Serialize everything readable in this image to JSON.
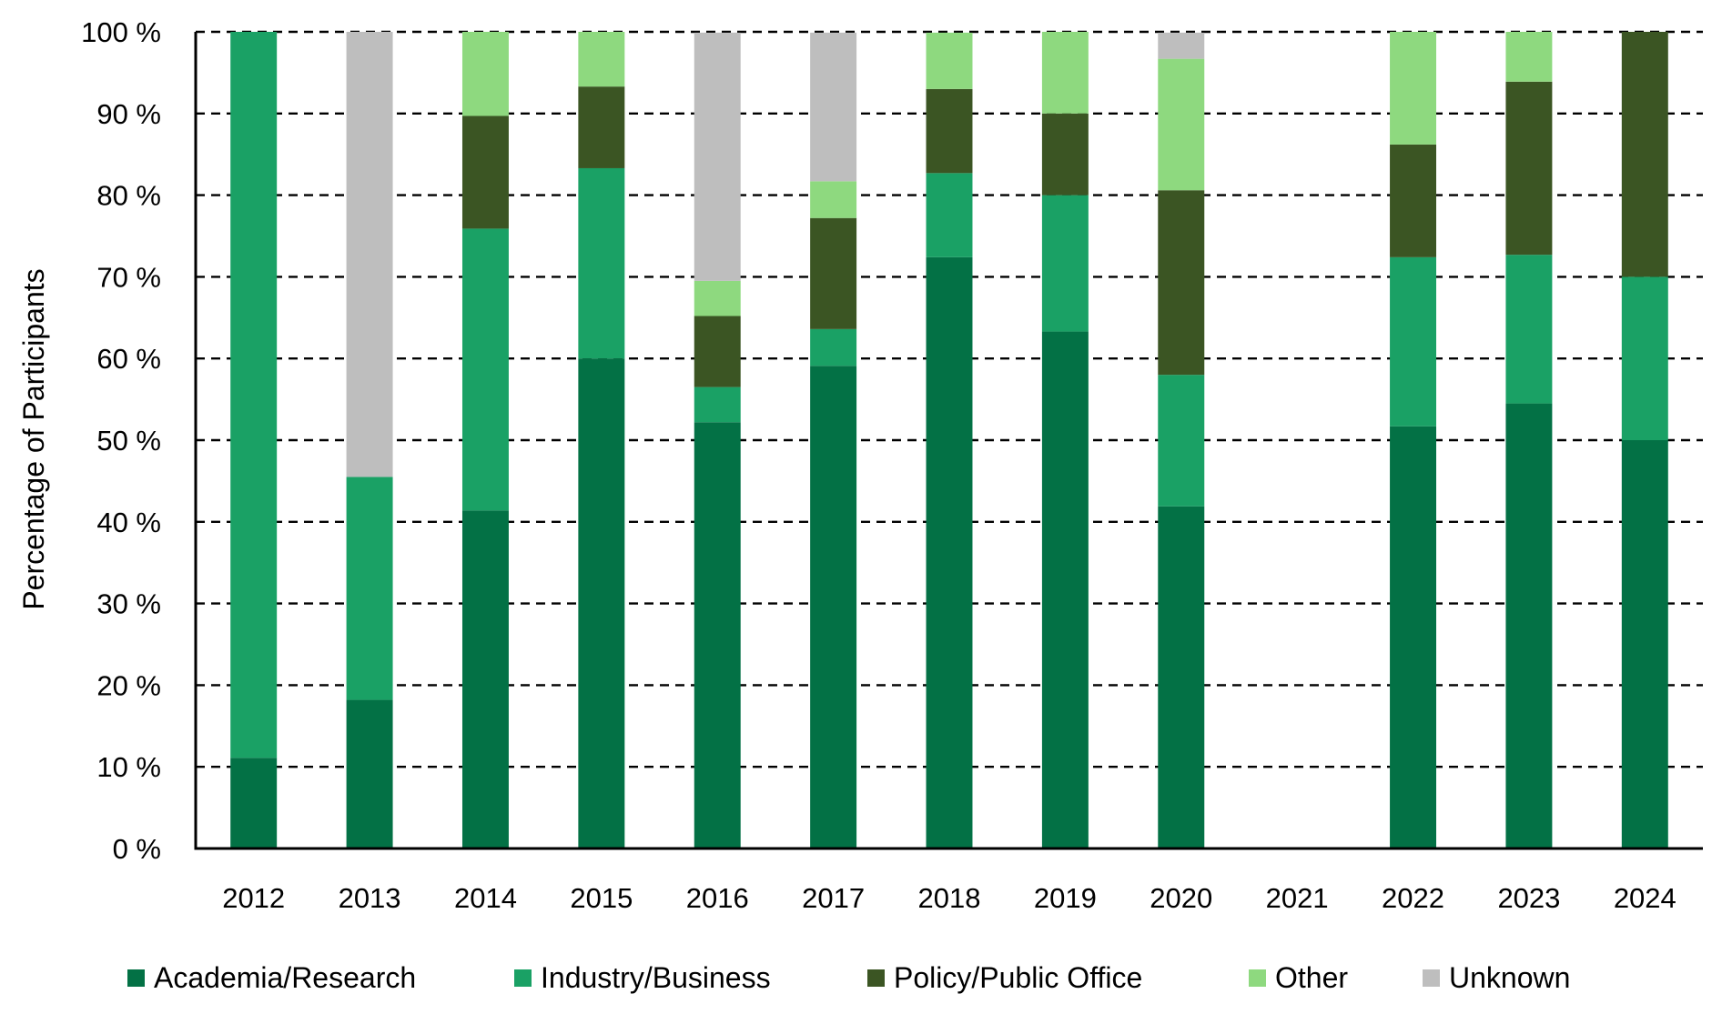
{
  "chart_data": {
    "type": "bar",
    "stacked": true,
    "title": "",
    "xlabel": "",
    "ylabel": "Percentage of Participants",
    "ylim": [
      0,
      100
    ],
    "yticks": [
      "0 %",
      "10 %",
      "20 %",
      "30 %",
      "40 %",
      "50 %",
      "60 %",
      "70 %",
      "80 %",
      "90 %",
      "100 %"
    ],
    "grid": true,
    "legend_position": "bottom",
    "categories": [
      "2012",
      "2013",
      "2014",
      "2015",
      "2016",
      "2017",
      "2018",
      "2019",
      "2020",
      "2021",
      "2022",
      "2023",
      "2024"
    ],
    "series": [
      {
        "name": "Academia/Research",
        "color": "#037145",
        "values": [
          11.1,
          18.2,
          41.4,
          60.0,
          52.2,
          59.1,
          72.4,
          63.3,
          41.9,
          0,
          51.7,
          54.5,
          50.0
        ]
      },
      {
        "name": "Industry/Business",
        "color": "#1aa165",
        "values": [
          88.9,
          27.3,
          34.5,
          23.3,
          4.3,
          4.5,
          10.3,
          16.7,
          16.1,
          0,
          20.7,
          18.2,
          20.0
        ]
      },
      {
        "name": "Policy/Public Office",
        "color": "#3b5523",
        "values": [
          0,
          0,
          13.8,
          10.0,
          8.7,
          13.6,
          10.3,
          10.0,
          22.6,
          0,
          13.8,
          21.2,
          30.0
        ]
      },
      {
        "name": "Other",
        "color": "#8ed97f",
        "values": [
          0,
          0,
          10.3,
          6.7,
          4.3,
          4.5,
          6.9,
          10.0,
          16.1,
          0,
          13.8,
          6.1,
          0
        ]
      },
      {
        "name": "Unknown",
        "color": "#bebebe",
        "values": [
          0,
          54.5,
          0,
          0,
          30.4,
          18.2,
          0,
          0,
          3.2,
          0,
          0,
          0,
          0
        ]
      }
    ]
  }
}
